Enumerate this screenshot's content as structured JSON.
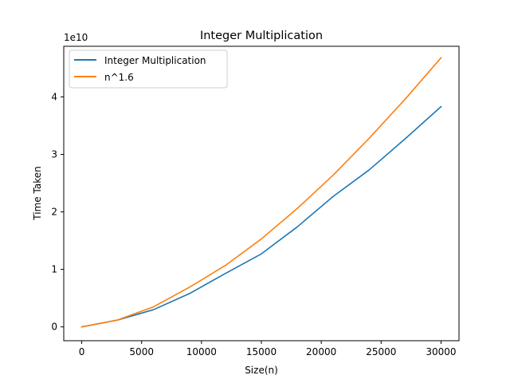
{
  "chart_data": {
    "type": "line",
    "title": "Integer Multiplication",
    "xlabel": "Size(n)",
    "ylabel": "Time Taken",
    "y_offset_label": "1e10",
    "xlim": [
      -1500,
      31500
    ],
    "ylim": [
      -0.24,
      4.88
    ],
    "x_ticks": [
      0,
      5000,
      10000,
      15000,
      20000,
      25000,
      30000
    ],
    "x_tick_labels": [
      "0",
      "5000",
      "10000",
      "15000",
      "20000",
      "25000",
      "30000"
    ],
    "y_ticks": [
      0,
      1,
      2,
      3,
      4
    ],
    "y_tick_labels": [
      "0",
      "1",
      "2",
      "3",
      "4"
    ],
    "grid": false,
    "legend_position": "top-left",
    "series": [
      {
        "name": "Integer Multiplication",
        "color": "#1f77b4",
        "x": [
          0,
          3000,
          6000,
          9000,
          12000,
          15000,
          18000,
          21000,
          24000,
          27000,
          30000
        ],
        "y": [
          0,
          0.12,
          0.3,
          0.58,
          0.93,
          1.27,
          1.74,
          2.27,
          2.73,
          3.27,
          3.83
        ]
      },
      {
        "name": "n^1.6",
        "color": "#ff7f0e",
        "x": [
          0,
          3000,
          6000,
          9000,
          12000,
          15000,
          18000,
          21000,
          24000,
          27000,
          30000
        ],
        "y": [
          0,
          0.12,
          0.35,
          0.69,
          1.07,
          1.53,
          2.06,
          2.64,
          3.28,
          3.96,
          4.68
        ]
      }
    ]
  }
}
